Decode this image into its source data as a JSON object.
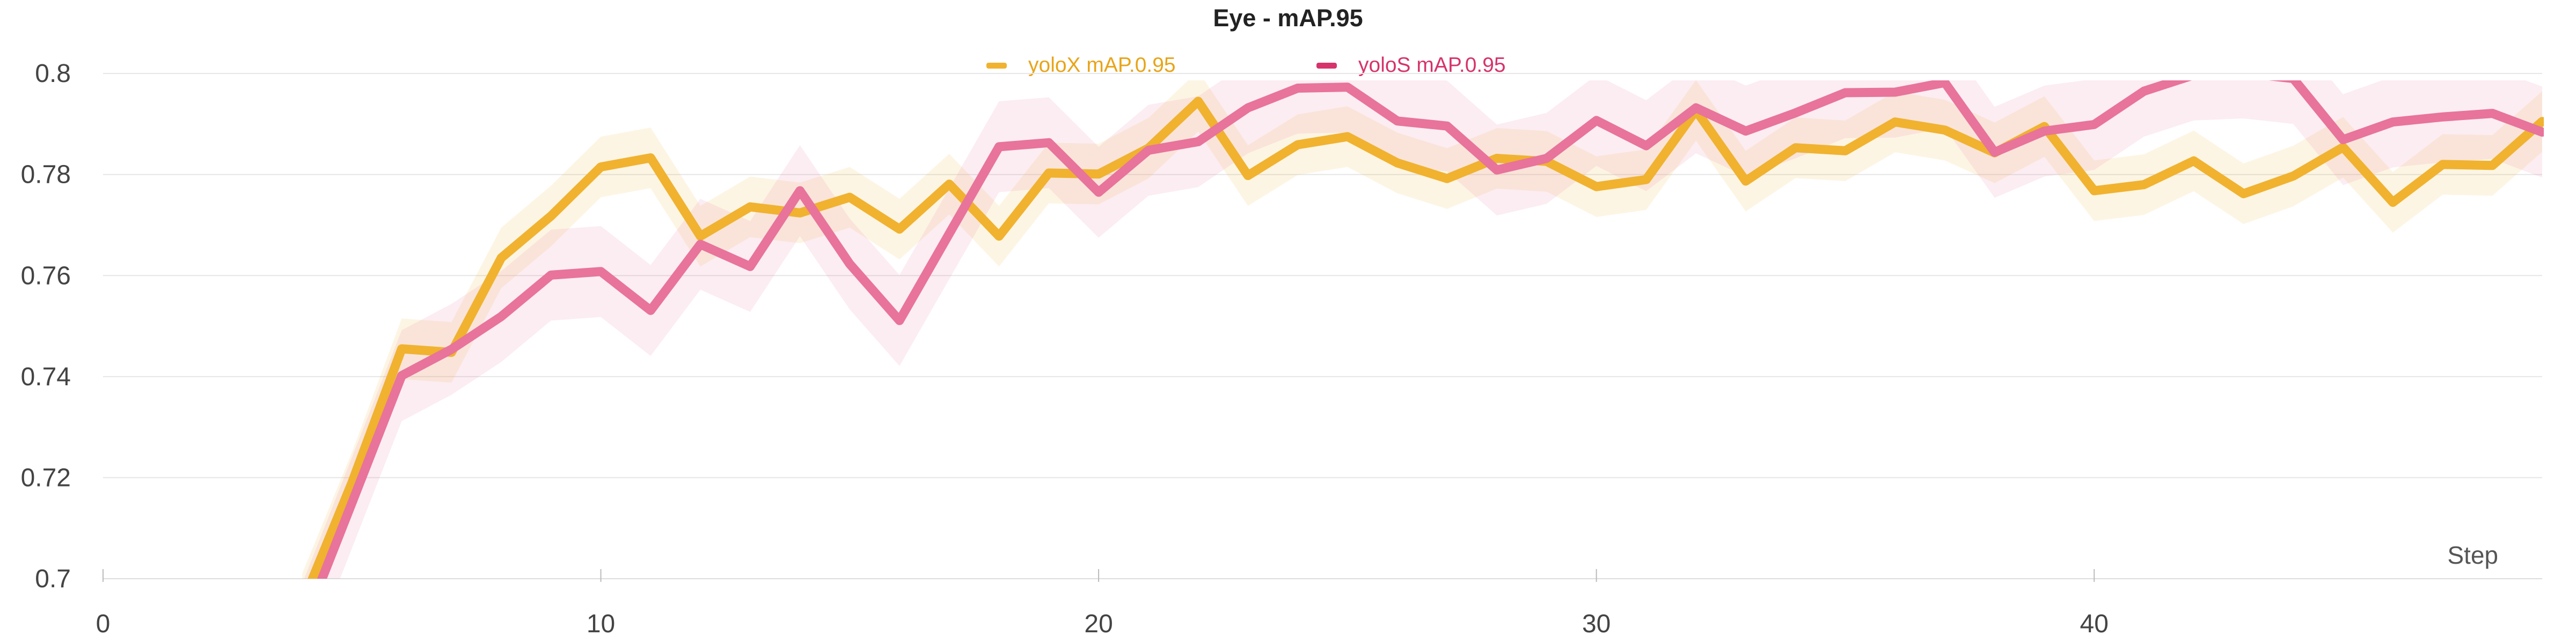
{
  "chart_data": {
    "type": "line",
    "title": "Eye - mAP.95",
    "xlabel": "Step",
    "ylabel": "",
    "xlim": [
      0,
      49
    ],
    "ylim": [
      0.7,
      0.805
    ],
    "x_ticks": [
      0,
      10,
      20,
      30,
      40
    ],
    "y_ticks": [
      0.7,
      0.72,
      0.74,
      0.76,
      0.78,
      0.8
    ],
    "grid": true,
    "legend_position": "top-center",
    "x": [
      4,
      5,
      6,
      7,
      8,
      9,
      10,
      11,
      12,
      13,
      14,
      15,
      16,
      17,
      18,
      19,
      20,
      21,
      22,
      23,
      24,
      25,
      26,
      27,
      28,
      29,
      30,
      31,
      32,
      33,
      34,
      35,
      36,
      37,
      38,
      39,
      40,
      41,
      42,
      43,
      44,
      45,
      46,
      47,
      48,
      49
    ],
    "series": [
      {
        "name": "yoloX mAP.0.95",
        "color": "#f0b22f",
        "band": 0.006,
        "values": [
          0.695,
          0.719,
          0.7455,
          0.7448,
          0.7635,
          0.7718,
          0.7815,
          0.7833,
          0.7678,
          0.7736,
          0.7724,
          0.7755,
          0.7692,
          0.7781,
          0.7678,
          0.7803,
          0.7801,
          0.7852,
          0.7945,
          0.7798,
          0.7859,
          0.7875,
          0.7823,
          0.7792,
          0.7832,
          0.7826,
          0.7776,
          0.779,
          0.7927,
          0.7787,
          0.7853,
          0.7847,
          0.7904,
          0.7888,
          0.7843,
          0.7895,
          0.7768,
          0.778,
          0.7827,
          0.7762,
          0.7797,
          0.7854,
          0.7745,
          0.782,
          0.7818,
          0.7905
        ]
      },
      {
        "name": "yoloS mAP.0.95",
        "color": "#e8739b",
        "band": 0.009,
        "values": [
          0.69,
          0.715,
          0.7402,
          0.7454,
          0.7519,
          0.7601,
          0.7608,
          0.7531,
          0.7662,
          0.7618,
          0.7768,
          0.7623,
          0.7511,
          0.7683,
          0.7855,
          0.7863,
          0.7765,
          0.7848,
          0.7865,
          0.7932,
          0.7971,
          0.7973,
          0.7906,
          0.7896,
          0.7809,
          0.7832,
          0.7907,
          0.7857,
          0.7932,
          0.7886,
          0.7922,
          0.7962,
          0.7963,
          0.7982,
          0.7844,
          0.7886,
          0.7899,
          0.7965,
          0.7997,
          0.8001,
          0.799,
          0.7869,
          0.7904,
          0.7914,
          0.7921,
          0.7884
        ]
      }
    ]
  },
  "legend": [
    {
      "label": "yoloX mAP.0.95",
      "color": "#f0b22f",
      "text_color": "#e8a418"
    },
    {
      "label": "yoloS mAP.0.95",
      "color": "#d6336c",
      "text_color": "#d6336c"
    }
  ]
}
